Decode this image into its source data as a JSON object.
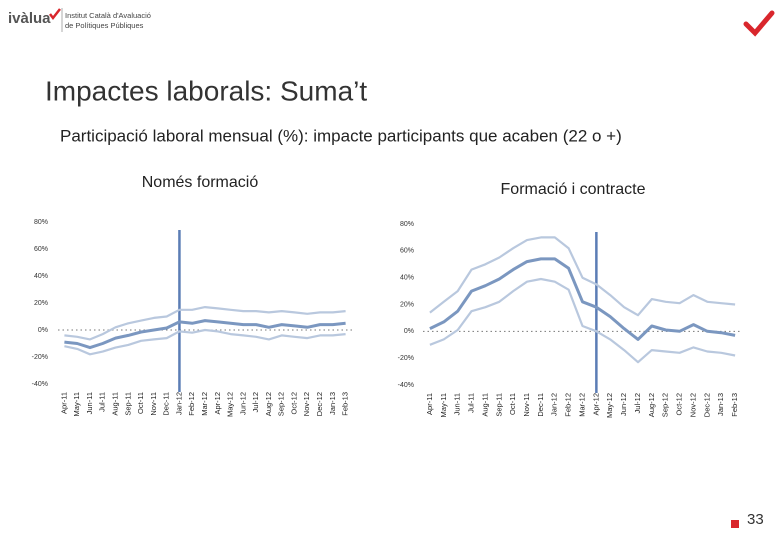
{
  "header": {
    "logo": "ivàlua",
    "institute_line1": "Institut Català d'Avaluació",
    "institute_line2": "de Polítiques Públiques"
  },
  "title": "Impactes laborals: Suma’t",
  "subtitle": "Participació laboral mensual (%): impacte participants que acaben (22 o +)",
  "page_number": "33",
  "chart_data": [
    {
      "type": "line",
      "title": "Només formació",
      "categories": [
        "Apr-11",
        "May-11",
        "Jun-11",
        "Jul-11",
        "Aug-11",
        "Sep-11",
        "Oct-11",
        "Nov-11",
        "Dec-11",
        "Jan-12",
        "Feb-12",
        "Mar-12",
        "Apr-12",
        "May-12",
        "Jun-12",
        "Jul-12",
        "Aug-12",
        "Sep-12",
        "Oct-12",
        "Nov-12",
        "Dec-12",
        "Jan-13",
        "Feb-13"
      ],
      "ylim": [
        -40,
        80
      ],
      "yticks": [
        {
          "value": 80,
          "label": "80%"
        },
        {
          "value": 60,
          "label": "60%"
        },
        {
          "value": 40,
          "label": "40%"
        },
        {
          "value": 20,
          "label": "20%"
        },
        {
          "value": 0,
          "label": "0%"
        },
        {
          "value": -20,
          "label": "-20%"
        },
        {
          "value": -40,
          "label": "-40%"
        }
      ],
      "series": [
        {
          "color": "#b9c8de",
          "values": [
            -4,
            -5,
            -7,
            -3,
            2,
            5,
            7,
            9,
            10,
            15,
            15,
            17,
            16,
            15,
            14,
            14,
            13,
            14,
            13,
            12,
            13,
            13,
            14
          ]
        },
        {
          "color": "#b9c8de",
          "values": [
            -12,
            -14,
            -18,
            -16,
            -13,
            -11,
            -8,
            -7,
            -6,
            -1,
            -2,
            0,
            -1,
            -3,
            -4,
            -5,
            -7,
            -4,
            -5,
            -6,
            -4,
            -4,
            -3
          ]
        },
        {
          "color": "#7b97c0",
          "values": [
            -9,
            -10,
            -13,
            -10,
            -6,
            -4,
            -1.5,
            0,
            1.5,
            6,
            5,
            7,
            6,
            5,
            4,
            4,
            2,
            4,
            3,
            2,
            4,
            4,
            5
          ]
        }
      ]
    },
    {
      "type": "line",
      "title": "Formació i contracte",
      "categories": [
        "Apr-11",
        "May-11",
        "Jun-11",
        "Jul-11",
        "Aug-11",
        "Sep-11",
        "Oct-11",
        "Nov-11",
        "Dec-11",
        "Jan-12",
        "Feb-12",
        "Mar-12",
        "Apr-12",
        "May-12",
        "Jun-12",
        "Jul-12",
        "Aug-12",
        "Sep-12",
        "Oct-12",
        "Nov-12",
        "Dec-12",
        "Jan-13",
        "Feb-13"
      ],
      "ylim": [
        -40,
        80
      ],
      "yticks": [
        {
          "value": 80,
          "label": "80%"
        },
        {
          "value": 60,
          "label": "60%"
        },
        {
          "value": 40,
          "label": "40%"
        },
        {
          "value": 20,
          "label": "20%"
        },
        {
          "value": 0,
          "label": "0%"
        },
        {
          "value": -20,
          "label": "-20%"
        },
        {
          "value": -40,
          "label": "-40%"
        }
      ],
      "series": [
        {
          "color": "#b9c8de",
          "values": [
            14,
            22,
            30,
            46,
            50,
            55,
            62,
            68,
            70,
            70,
            62,
            40,
            35,
            27,
            18,
            12,
            24,
            22,
            21,
            27,
            22,
            21,
            20
          ]
        },
        {
          "color": "#b9c8de",
          "values": [
            -10,
            -6,
            1,
            15,
            18,
            22,
            30,
            37,
            39,
            37,
            31,
            4,
            0,
            -6,
            -14,
            -23,
            -14,
            -15,
            -16,
            -12,
            -15,
            -16,
            -18
          ]
        },
        {
          "color": "#7b97c0",
          "values": [
            2,
            7,
            15,
            30,
            34,
            39,
            46,
            52,
            54,
            54,
            47,
            22,
            18,
            11,
            2,
            -6,
            4,
            1,
            0,
            5,
            0,
            -1,
            -3
          ]
        }
      ]
    }
  ]
}
